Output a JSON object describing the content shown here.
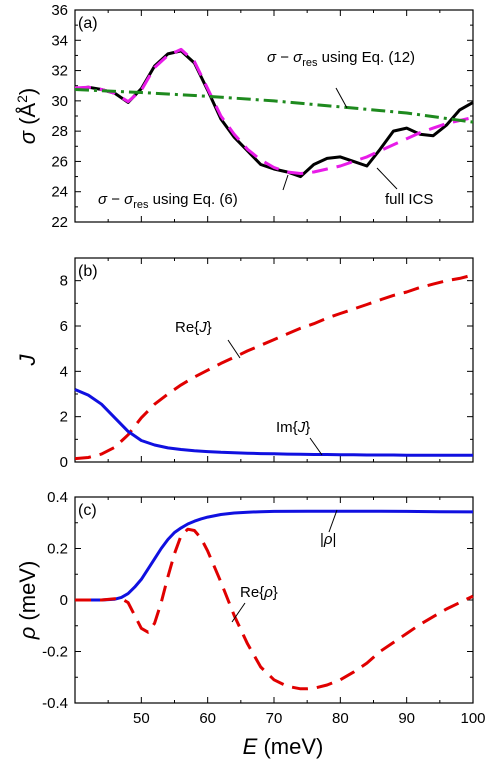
{
  "chart_data": [
    {
      "type": "line",
      "panel_label": "(a)",
      "ylabel": "σ (Å²)",
      "xlim": [
        40,
        100
      ],
      "ylim": [
        22,
        36
      ],
      "yticks": [
        22,
        24,
        26,
        28,
        30,
        32,
        34,
        36
      ],
      "grid": false,
      "series": [
        {
          "name": "full ICS",
          "color": "#000000",
          "dash": "solid",
          "x": [
            40,
            42,
            44,
            46,
            48,
            50,
            52,
            54,
            56,
            58,
            60,
            62,
            64,
            66,
            68,
            70,
            72,
            74,
            76,
            78,
            80,
            82,
            84,
            86,
            88,
            90,
            92,
            94,
            96,
            98,
            100
          ],
          "y": [
            30.8,
            30.9,
            30.75,
            30.5,
            29.9,
            30.8,
            32.3,
            33.1,
            33.3,
            32.5,
            30.7,
            28.8,
            27.6,
            26.7,
            25.8,
            25.5,
            25.3,
            25.0,
            25.8,
            26.2,
            26.3,
            26.0,
            25.7,
            26.8,
            28.0,
            28.2,
            27.8,
            27.7,
            28.4,
            29.4,
            29.9
          ]
        },
        {
          "name": "σ − σres using Eq. (6)",
          "color": "#e81be8",
          "dash": "dash",
          "x": [
            40,
            42,
            44,
            46,
            48,
            50,
            52,
            54,
            56,
            58,
            60,
            62,
            64,
            66,
            68,
            70,
            72,
            74,
            76,
            78,
            80,
            82,
            84,
            86,
            88,
            90,
            92,
            94,
            96,
            98,
            100
          ],
          "y": [
            30.85,
            30.9,
            30.75,
            30.5,
            29.95,
            30.7,
            32.2,
            33.0,
            33.4,
            32.6,
            30.8,
            29.0,
            27.8,
            26.8,
            26.1,
            25.6,
            25.3,
            25.2,
            25.3,
            25.5,
            25.7,
            26.0,
            26.3,
            26.7,
            27.1,
            27.5,
            27.9,
            28.2,
            28.5,
            28.7,
            28.9
          ]
        },
        {
          "name": "σ − σres using Eq. (12)",
          "color": "#1e8a1e",
          "dash": "dashdot",
          "x": [
            40,
            50,
            60,
            70,
            80,
            90,
            100
          ],
          "y": [
            30.75,
            30.55,
            30.3,
            30.0,
            29.6,
            29.2,
            28.6
          ]
        }
      ],
      "annotations": [
        {
          "text": "σ − σres using Eq. (12)",
          "sym": "σ",
          "sub": "res",
          "tail": "using Eq. (12)"
        },
        {
          "text": "σ − σres using Eq. (6)",
          "sym": "σ",
          "sub": "res",
          "tail": "using Eq. (6)"
        },
        {
          "text": "full ICS"
        }
      ]
    },
    {
      "type": "line",
      "panel_label": "(b)",
      "ylabel": "J",
      "xlim": [
        40,
        100
      ],
      "ylim": [
        0,
        9
      ],
      "yticks": [
        0,
        2,
        4,
        6,
        8
      ],
      "grid": false,
      "series": [
        {
          "name": "Re{J}",
          "color": "#e00000",
          "dash": "dash",
          "x": [
            40,
            42,
            44,
            46,
            48,
            50,
            52,
            54,
            56,
            58,
            60,
            62,
            64,
            66,
            68,
            70,
            72,
            74,
            76,
            78,
            80,
            82,
            84,
            86,
            88,
            90,
            92,
            94,
            96,
            98,
            100
          ],
          "y": [
            0.15,
            0.2,
            0.35,
            0.65,
            1.2,
            1.95,
            2.55,
            3.0,
            3.4,
            3.75,
            4.05,
            4.35,
            4.62,
            4.9,
            5.15,
            5.4,
            5.65,
            5.9,
            6.1,
            6.35,
            6.55,
            6.75,
            6.95,
            7.15,
            7.35,
            7.5,
            7.7,
            7.85,
            8.0,
            8.1,
            8.25
          ]
        },
        {
          "name": "Im{J}",
          "color": "#1010e0",
          "dash": "solid",
          "x": [
            40,
            42,
            44,
            46,
            48,
            50,
            52,
            54,
            56,
            58,
            60,
            62,
            64,
            66,
            68,
            70,
            72,
            74,
            76,
            78,
            80,
            82,
            84,
            86,
            88,
            90,
            92,
            94,
            96,
            98,
            100
          ],
          "y": [
            3.2,
            2.95,
            2.55,
            1.95,
            1.35,
            0.95,
            0.75,
            0.62,
            0.55,
            0.5,
            0.46,
            0.43,
            0.41,
            0.39,
            0.37,
            0.36,
            0.35,
            0.34,
            0.33,
            0.33,
            0.32,
            0.32,
            0.31,
            0.31,
            0.31,
            0.3,
            0.3,
            0.3,
            0.3,
            0.3,
            0.3
          ]
        }
      ],
      "annotations": [
        {
          "text": "Re{J}",
          "pre": "Re{",
          "sym": "J",
          "post": "}"
        },
        {
          "text": "Im{J}",
          "pre": "Im{",
          "sym": "J",
          "post": "}"
        }
      ]
    },
    {
      "type": "line",
      "panel_label": "(c)",
      "ylabel": "ρ (meV)",
      "xlabel": "E (meV)",
      "xlim": [
        40,
        100
      ],
      "xticks": [
        50,
        60,
        70,
        80,
        90,
        100
      ],
      "ylim": [
        -0.4,
        0.4
      ],
      "yticks": [
        -0.4,
        -0.2,
        0,
        0.2,
        0.4
      ],
      "grid": false,
      "series": [
        {
          "name": "|ρ|",
          "color": "#1010e0",
          "dash": "solid",
          "x": [
            40,
            42,
            44,
            46,
            47,
            48,
            49,
            50,
            51,
            52,
            53,
            54,
            55,
            56,
            57,
            58,
            59,
            60,
            62,
            64,
            66,
            68,
            70,
            75,
            80,
            85,
            90,
            95,
            100
          ],
          "y": [
            0.0,
            0.0,
            0.0,
            0.003,
            0.01,
            0.025,
            0.05,
            0.08,
            0.12,
            0.16,
            0.2,
            0.235,
            0.262,
            0.28,
            0.295,
            0.306,
            0.315,
            0.322,
            0.332,
            0.338,
            0.341,
            0.343,
            0.344,
            0.345,
            0.345,
            0.345,
            0.344,
            0.343,
            0.342
          ]
        },
        {
          "name": "Re{ρ}",
          "color": "#e00000",
          "dash": "dash",
          "x": [
            40,
            44,
            46,
            47,
            48,
            49,
            50,
            51,
            52,
            53,
            54,
            55,
            56,
            57,
            58,
            59,
            60,
            62,
            64,
            66,
            68,
            70,
            72,
            74,
            75,
            76,
            78,
            80,
            82,
            84,
            86,
            88,
            90,
            92,
            94,
            96,
            98,
            100
          ],
          "y": [
            0.0,
            0.0,
            0.005,
            0.005,
            -0.01,
            -0.06,
            -0.11,
            -0.125,
            -0.09,
            -0.01,
            0.09,
            0.18,
            0.25,
            0.275,
            0.27,
            0.24,
            0.19,
            0.07,
            -0.06,
            -0.17,
            -0.26,
            -0.31,
            -0.335,
            -0.345,
            -0.345,
            -0.343,
            -0.33,
            -0.31,
            -0.28,
            -0.245,
            -0.2,
            -0.165,
            -0.13,
            -0.095,
            -0.065,
            -0.035,
            -0.01,
            0.015
          ]
        }
      ],
      "annotations": [
        {
          "text": "|ρ|"
        },
        {
          "text": "Re{ρ}"
        }
      ]
    }
  ]
}
